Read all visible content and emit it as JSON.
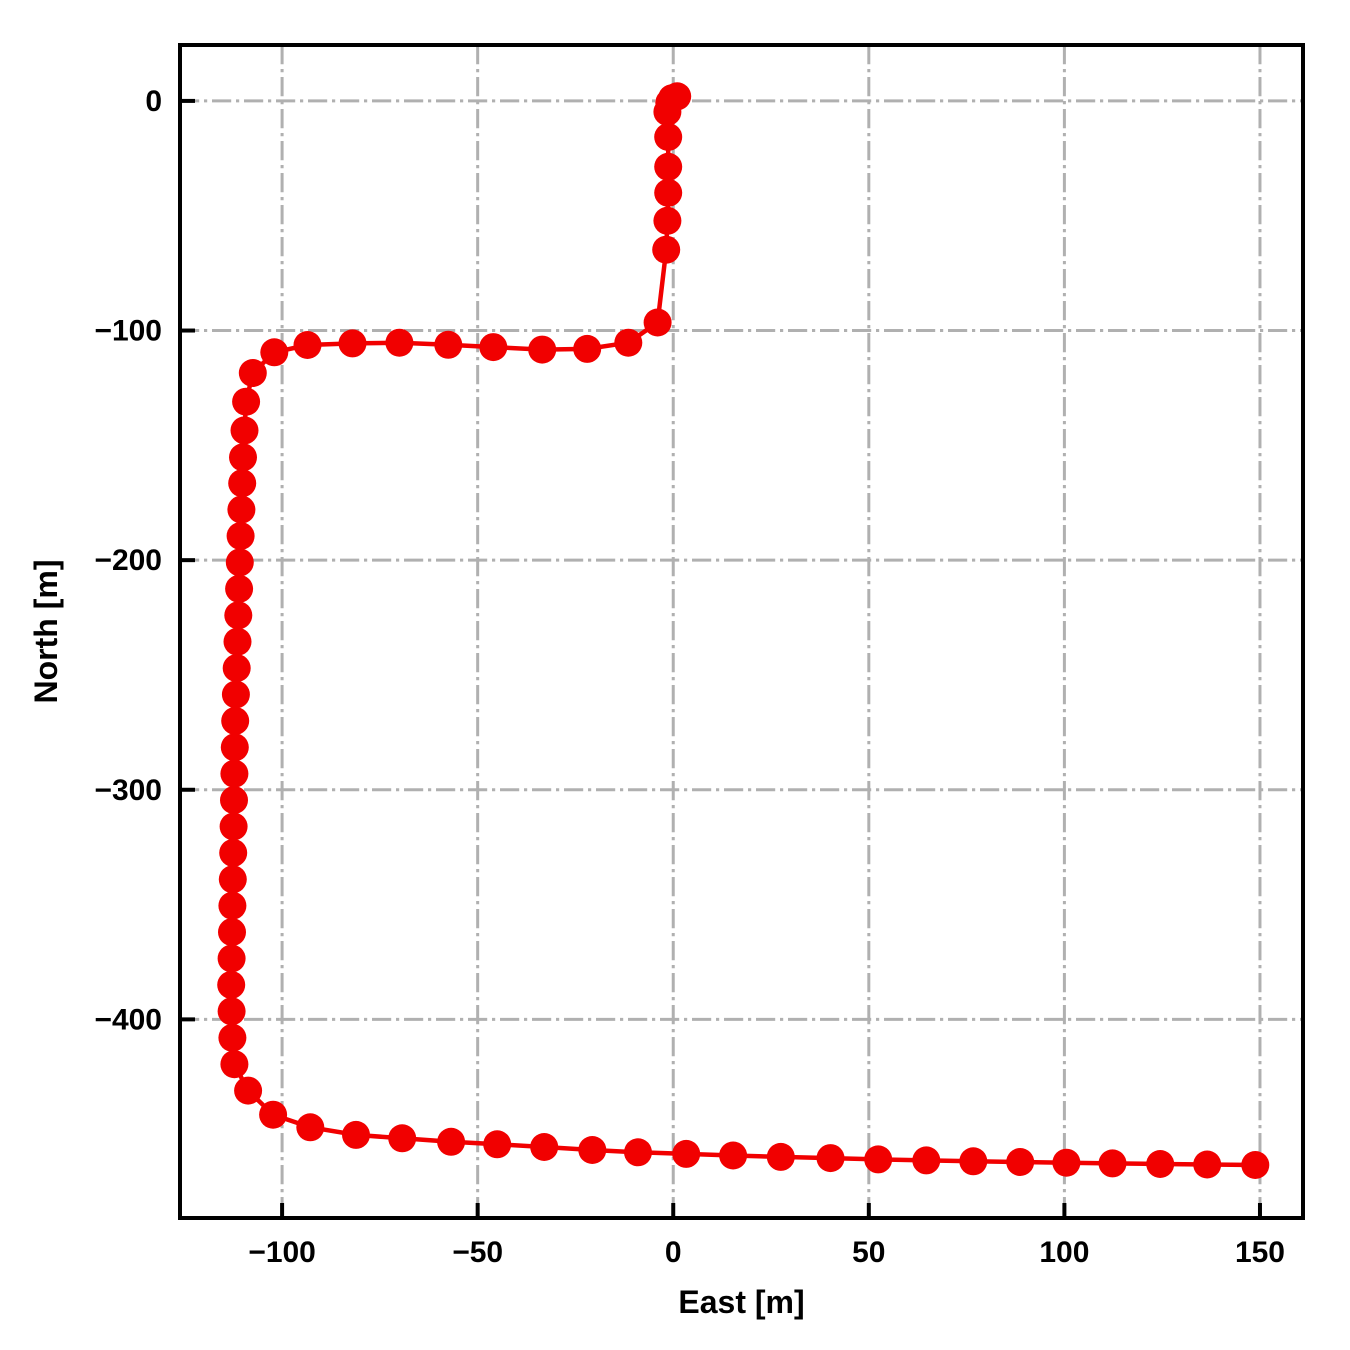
{
  "style": {
    "background": "#ffffff",
    "trajectory_color": "#f10000",
    "grid_color": "#b0b0b0",
    "axis_color": "#000000"
  },
  "chart_data": {
    "type": "line",
    "title": "",
    "xlabel": "East [m]",
    "ylabel": "North [m]",
    "xlim": [
      -126.1,
      161.0
    ],
    "ylim": [
      -486.5,
      24.35
    ],
    "xticks": [
      -100,
      -50,
      0,
      50,
      100,
      150
    ],
    "yticks": [
      0,
      -100,
      -200,
      -300,
      -400
    ],
    "grid": "on",
    "grid_linestyle": "dashdot",
    "legend": "none",
    "series": [
      {
        "name": "trajectory",
        "color": "#f10000",
        "marker": "circle",
        "points": [
          [
            1.0,
            2.0
          ],
          [
            -0.3,
            1.2
          ],
          [
            -1.0,
            -0.8
          ],
          [
            -1.5,
            -4.8
          ],
          [
            -1.3,
            -15.7
          ],
          [
            -1.3,
            -28.7
          ],
          [
            -1.3,
            -40.0
          ],
          [
            -1.5,
            -52.2
          ],
          [
            -1.8,
            -64.8
          ],
          [
            -4.0,
            -96.5
          ],
          [
            -11.5,
            -105.3
          ],
          [
            -22.0,
            -108.0
          ],
          [
            -33.5,
            -108.3
          ],
          [
            -46.0,
            -107.2
          ],
          [
            -57.5,
            -106.2
          ],
          [
            -70.0,
            -105.3
          ],
          [
            -82.0,
            -105.6
          ],
          [
            -93.5,
            -106.3
          ],
          [
            -102.0,
            -109.5
          ],
          [
            -107.5,
            -118.5
          ],
          [
            -109.2,
            -131.0
          ],
          [
            -109.6,
            -143.5
          ],
          [
            -110.0,
            -155.2
          ],
          [
            -110.2,
            -166.5
          ],
          [
            -110.4,
            -178.0
          ],
          [
            -110.6,
            -189.5
          ],
          [
            -110.8,
            -201.0
          ],
          [
            -111.0,
            -212.5
          ],
          [
            -111.2,
            -224.0
          ],
          [
            -111.4,
            -235.5
          ],
          [
            -111.6,
            -247.0
          ],
          [
            -111.8,
            -258.5
          ],
          [
            -112.0,
            -270.0
          ],
          [
            -112.1,
            -281.5
          ],
          [
            -112.2,
            -293.0
          ],
          [
            -112.3,
            -304.5
          ],
          [
            -112.4,
            -316.0
          ],
          [
            -112.5,
            -327.5
          ],
          [
            -112.6,
            -339.0
          ],
          [
            -112.7,
            -350.5
          ],
          [
            -112.8,
            -362.0
          ],
          [
            -112.9,
            -373.5
          ],
          [
            -113.0,
            -385.0
          ],
          [
            -112.9,
            -396.5
          ],
          [
            -112.7,
            -408.0
          ],
          [
            -112.2,
            -419.5
          ],
          [
            -108.7,
            -431.0
          ],
          [
            -102.3,
            -441.5
          ],
          [
            -92.8,
            -447.0
          ],
          [
            -81.1,
            -450.3
          ],
          [
            -69.3,
            -451.8
          ],
          [
            -56.8,
            -453.3
          ],
          [
            -45.0,
            -454.4
          ],
          [
            -33.0,
            -455.6
          ],
          [
            -20.7,
            -456.9
          ],
          [
            -9.0,
            -457.9
          ],
          [
            3.3,
            -458.6
          ],
          [
            15.3,
            -459.3
          ],
          [
            27.5,
            -459.9
          ],
          [
            40.2,
            -460.4
          ],
          [
            52.4,
            -461.0
          ],
          [
            64.7,
            -461.4
          ],
          [
            76.7,
            -461.8
          ],
          [
            88.7,
            -462.1
          ],
          [
            100.5,
            -462.4
          ],
          [
            112.3,
            -462.7
          ],
          [
            124.5,
            -463.0
          ],
          [
            136.5,
            -463.2
          ],
          [
            148.8,
            -463.4
          ]
        ]
      }
    ]
  }
}
